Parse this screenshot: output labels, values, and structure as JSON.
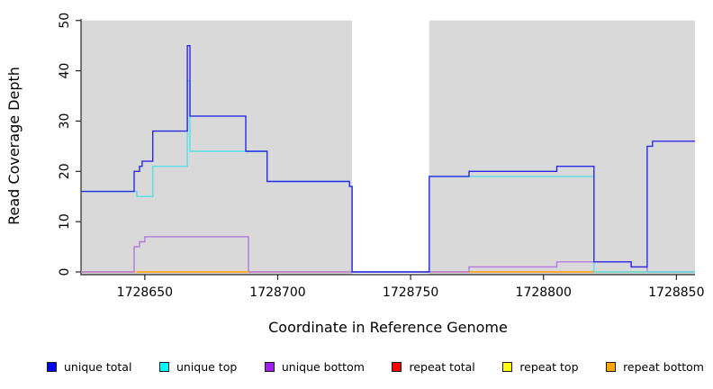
{
  "chart_data": {
    "type": "line",
    "subtype": "step",
    "xlabel": "Coordinate in Reference Genome",
    "ylabel": "Read Coverage Depth",
    "xlim": [
      1728626,
      1728857
    ],
    "ylim": [
      0,
      50
    ],
    "x_ticks": [
      1728650,
      1728700,
      1728750,
      1728800,
      1728850
    ],
    "y_ticks": [
      0,
      10,
      20,
      30,
      40,
      50
    ],
    "grid": "off",
    "plot_background": "#ffffff",
    "shaded_region_color": "#d9d9d9",
    "shaded_regions": [
      {
        "from": 1728626,
        "to": 1728728
      },
      {
        "from": 1728757,
        "to": 1728857
      }
    ],
    "unshaded_gap": {
      "from": 1728728,
      "to": 1728757
    },
    "series": [
      {
        "name": "repeat total",
        "line_color": "#e05578",
        "steps": [
          [
            1728626,
            0
          ]
        ]
      },
      {
        "name": "repeat top",
        "line_color": "#f0e53a",
        "steps": [
          [
            1728626,
            0
          ]
        ]
      },
      {
        "name": "unique bottom",
        "line_color": "#b379e0",
        "steps": [
          [
            1728626,
            0
          ],
          [
            1728646,
            5
          ],
          [
            1728648,
            6
          ],
          [
            1728650,
            7
          ],
          [
            1728689,
            0
          ],
          [
            1728772,
            1
          ],
          [
            1728805,
            2
          ],
          [
            1728833,
            1
          ],
          [
            1728839,
            0
          ]
        ]
      },
      {
        "name": "repeat bottom",
        "line_color": "#ffa11c",
        "steps": [
          [
            1728647,
            0
          ],
          [
            1728689,
            null
          ],
          [
            1728772,
            0
          ],
          [
            1728819,
            null
          ]
        ]
      },
      {
        "name": "unique top",
        "line_color": "#55dfe6",
        "steps": [
          [
            1728626,
            16
          ],
          [
            1728647,
            15
          ],
          [
            1728653,
            21
          ],
          [
            1728666,
            38
          ],
          [
            1728667,
            24
          ],
          [
            1728696,
            18
          ],
          [
            1728727,
            17
          ],
          [
            1728728,
            0
          ],
          [
            1728757,
            19
          ],
          [
            1728819,
            0
          ]
        ]
      },
      {
        "name": "unique total",
        "line_color": "#2a2ae6",
        "steps": [
          [
            1728626,
            16
          ],
          [
            1728646,
            20
          ],
          [
            1728648,
            21
          ],
          [
            1728649,
            22
          ],
          [
            1728653,
            28
          ],
          [
            1728666,
            45
          ],
          [
            1728667,
            31
          ],
          [
            1728688,
            24
          ],
          [
            1728696,
            18
          ],
          [
            1728727,
            17
          ],
          [
            1728728,
            0
          ],
          [
            1728757,
            19
          ],
          [
            1728772,
            20
          ],
          [
            1728805,
            21
          ],
          [
            1728819,
            2
          ],
          [
            1728833,
            1
          ],
          [
            1728839,
            25
          ],
          [
            1728841,
            26
          ]
        ]
      }
    ],
    "legend": [
      {
        "label": "unique total",
        "swatch_color": "#0000ff"
      },
      {
        "label": "unique top",
        "swatch_color": "#00ffff"
      },
      {
        "label": "unique bottom",
        "swatch_color": "#a020f0"
      },
      {
        "label": "repeat total",
        "swatch_color": "#ff0000"
      },
      {
        "label": "repeat top",
        "swatch_color": "#ffff00"
      },
      {
        "label": "repeat bottom",
        "swatch_color": "#ffa500"
      }
    ],
    "legend_position": "bottom"
  }
}
